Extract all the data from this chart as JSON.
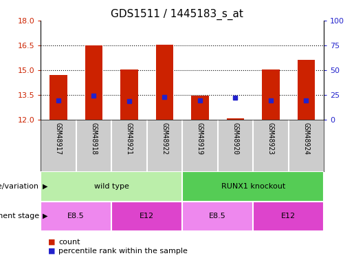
{
  "title": "GDS1511 / 1445183_s_at",
  "samples": [
    "GSM48917",
    "GSM48918",
    "GSM48921",
    "GSM48922",
    "GSM48919",
    "GSM48920",
    "GSM48923",
    "GSM48924"
  ],
  "count_values": [
    14.7,
    16.5,
    15.05,
    16.55,
    13.45,
    12.1,
    15.05,
    15.65
  ],
  "percentile_values": [
    13.2,
    13.45,
    13.15,
    13.4,
    13.2,
    13.35,
    13.2,
    13.2
  ],
  "ylim_left": [
    12,
    18
  ],
  "ylim_right": [
    0,
    100
  ],
  "yticks_left": [
    12,
    13.5,
    15,
    16.5,
    18
  ],
  "yticks_right": [
    0,
    25,
    50,
    75,
    100
  ],
  "bar_color": "#cc2200",
  "dot_color": "#2222cc",
  "bar_bottom": 12,
  "genotype_groups": [
    {
      "label": "wild type",
      "start": 0,
      "end": 4,
      "color": "#bbeeaa"
    },
    {
      "label": "RUNX1 knockout",
      "start": 4,
      "end": 8,
      "color": "#55cc55"
    }
  ],
  "stage_groups": [
    {
      "label": "E8.5",
      "start": 0,
      "end": 2,
      "color": "#ee88ee"
    },
    {
      "label": "E12",
      "start": 2,
      "end": 4,
      "color": "#dd44cc"
    },
    {
      "label": "E8.5",
      "start": 4,
      "end": 6,
      "color": "#ee88ee"
    },
    {
      "label": "E12",
      "start": 6,
      "end": 8,
      "color": "#dd44cc"
    }
  ],
  "left_label_color": "#cc2200",
  "right_label_color": "#2222cc",
  "bg_plot": "#ffffff",
  "bg_sample_row": "#cccccc",
  "legend_count_color": "#cc2200",
  "legend_pct_color": "#2222cc",
  "gridline_values": [
    13.5,
    15,
    16.5
  ],
  "title_fontsize": 11,
  "tick_fontsize": 8,
  "sample_fontsize": 7,
  "row_label_fontsize": 8,
  "row_text_fontsize": 8,
  "legend_fontsize": 8
}
